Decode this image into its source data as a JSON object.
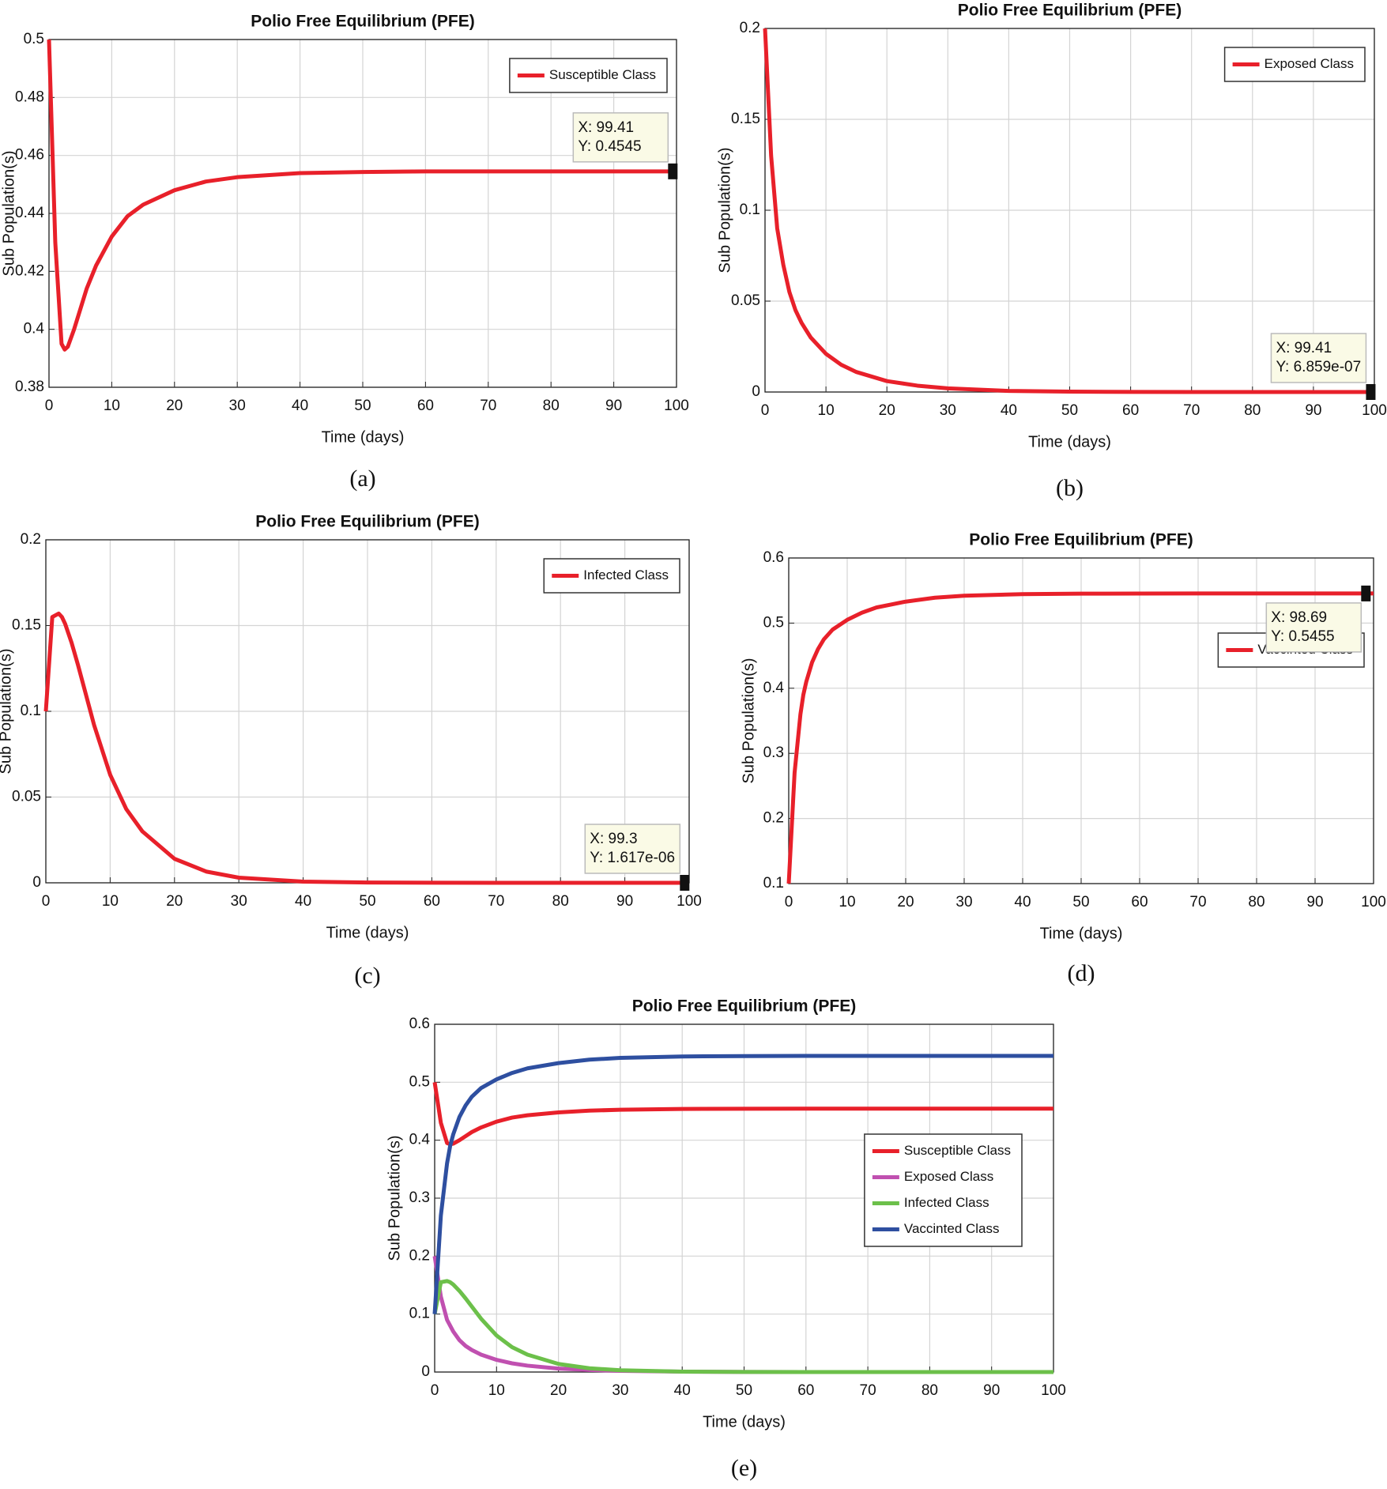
{
  "chart_data": [
    {
      "type": "line",
      "title": "Polio Free Equilibrium (PFE)",
      "caption": "(a)",
      "xlabel": "Time (days)",
      "ylabel": "Sub Population(s)",
      "x": [
        0,
        1,
        2,
        2.5,
        3,
        4,
        5,
        6,
        7.5,
        10,
        12.5,
        15,
        20,
        25,
        30,
        40,
        50,
        60,
        70,
        80,
        90,
        100
      ],
      "series": [
        {
          "name": "Susceptible Class",
          "color": "#e8202a",
          "values": [
            0.5,
            0.43,
            0.395,
            0.393,
            0.394,
            0.4,
            0.407,
            0.414,
            0.422,
            0.432,
            0.439,
            0.443,
            0.448,
            0.451,
            0.4525,
            0.4539,
            0.4543,
            0.4545,
            0.4545,
            0.4545,
            0.4545,
            0.4545
          ]
        }
      ],
      "xlim": [
        0,
        100
      ],
      "ylim": [
        0.38,
        0.5
      ],
      "xticks": [
        0,
        10,
        20,
        30,
        40,
        50,
        60,
        70,
        80,
        90,
        100
      ],
      "yticks": [
        0.38,
        0.4,
        0.42,
        0.44,
        0.46,
        0.48,
        0.5
      ],
      "grid": true,
      "legend": "upper right",
      "annotations": [
        {
          "x": 99.41,
          "y": 0.4545,
          "lines": [
            "X: 99.41",
            "Y: 0.4545"
          ]
        }
      ]
    },
    {
      "type": "line",
      "title": "Polio Free Equilibrium (PFE)",
      "caption": "(b)",
      "xlabel": "Time (days)",
      "ylabel": "Sub Population(s)",
      "x": [
        0,
        1,
        2,
        2.5,
        3,
        4,
        5,
        6,
        7.5,
        10,
        12.5,
        15,
        20,
        25,
        30,
        40,
        50,
        60,
        70,
        80,
        90,
        100
      ],
      "series": [
        {
          "name": "Exposed Class",
          "color": "#e8202a",
          "values": [
            0.2,
            0.13,
            0.09,
            0.08,
            0.07,
            0.055,
            0.045,
            0.038,
            0.03,
            0.021,
            0.015,
            0.011,
            0.006,
            0.0035,
            0.002,
            0.0006,
            0.0002,
            6e-05,
            2e-05,
            6e-06,
            2e-06,
            7e-07
          ]
        }
      ],
      "xlim": [
        0,
        100
      ],
      "ylim": [
        0,
        0.2
      ],
      "xticks": [
        0,
        10,
        20,
        30,
        40,
        50,
        60,
        70,
        80,
        90,
        100
      ],
      "yticks": [
        0,
        0.05,
        0.1,
        0.15,
        0.2
      ],
      "grid": true,
      "legend": "upper right",
      "annotations": [
        {
          "x": 99.41,
          "y": 6.859e-07,
          "lines": [
            "X: 99.41",
            "Y: 6.859e-07"
          ]
        }
      ]
    },
    {
      "type": "line",
      "title": "Polio Free Equilibrium (PFE)",
      "caption": "(c)",
      "xlabel": "Time (days)",
      "ylabel": "Sub Population(s)",
      "x": [
        0,
        1,
        2,
        2.5,
        3,
        4,
        5,
        6,
        7.5,
        10,
        12.5,
        15,
        20,
        25,
        30,
        40,
        50,
        60,
        70,
        80,
        90,
        100
      ],
      "series": [
        {
          "name": "Infected Class",
          "color": "#e8202a",
          "values": [
            0.1,
            0.155,
            0.157,
            0.155,
            0.151,
            0.14,
            0.127,
            0.113,
            0.092,
            0.063,
            0.043,
            0.03,
            0.014,
            0.0065,
            0.003,
            0.0007,
            0.00015,
            4e-05,
            1e-05,
            3e-06,
            2e-06,
            1.6e-06
          ]
        }
      ],
      "xlim": [
        0,
        100
      ],
      "ylim": [
        0,
        0.2
      ],
      "xticks": [
        0,
        10,
        20,
        30,
        40,
        50,
        60,
        70,
        80,
        90,
        100
      ],
      "yticks": [
        0,
        0.05,
        0.1,
        0.15,
        0.2
      ],
      "grid": true,
      "legend": "upper right",
      "annotations": [
        {
          "x": 99.3,
          "y": 1.617e-06,
          "lines": [
            "X: 99.3",
            "Y: 1.617e-06"
          ]
        }
      ]
    },
    {
      "type": "line",
      "title": "Polio Free Equilibrium (PFE)",
      "caption": "(d)",
      "xlabel": "Time (days)",
      "ylabel": "Sub Population(s)",
      "x": [
        0,
        1,
        2,
        2.5,
        3,
        4,
        5,
        6,
        7.5,
        10,
        12.5,
        15,
        20,
        25,
        30,
        40,
        50,
        60,
        70,
        80,
        90,
        100
      ],
      "series": [
        {
          "name": "Vaccinted Class",
          "color": "#e8202a",
          "values": [
            0.1,
            0.27,
            0.36,
            0.39,
            0.41,
            0.44,
            0.46,
            0.475,
            0.49,
            0.505,
            0.516,
            0.524,
            0.533,
            0.539,
            0.542,
            0.5445,
            0.5452,
            0.5454,
            0.5455,
            0.5455,
            0.5455,
            0.5455
          ]
        }
      ],
      "xlim": [
        0,
        100
      ],
      "ylim": [
        0.1,
        0.6
      ],
      "xticks": [
        0,
        10,
        20,
        30,
        40,
        50,
        60,
        70,
        80,
        90,
        100
      ],
      "yticks": [
        0.1,
        0.2,
        0.3,
        0.4,
        0.5,
        0.6
      ],
      "grid": true,
      "legend": "upper right",
      "annotations": [
        {
          "x": 98.69,
          "y": 0.5455,
          "lines": [
            "X: 98.69",
            "Y: 0.5455"
          ]
        }
      ]
    },
    {
      "type": "line",
      "title": "Polio Free Equilibrium (PFE)",
      "caption": "(e)",
      "xlabel": "Time (days)",
      "ylabel": "Sub Population(s)",
      "x": [
        0,
        1,
        2,
        2.5,
        3,
        4,
        5,
        6,
        7.5,
        10,
        12.5,
        15,
        20,
        25,
        30,
        40,
        50,
        60,
        70,
        80,
        90,
        100
      ],
      "series": [
        {
          "name": "Susceptible Class",
          "color": "#e8202a",
          "values": [
            0.5,
            0.43,
            0.395,
            0.393,
            0.394,
            0.4,
            0.407,
            0.414,
            0.422,
            0.432,
            0.439,
            0.443,
            0.448,
            0.451,
            0.4525,
            0.4539,
            0.4543,
            0.4545,
            0.4545,
            0.4545,
            0.4545,
            0.4545
          ]
        },
        {
          "name": "Exposed Class",
          "color": "#c050b0",
          "values": [
            0.2,
            0.13,
            0.09,
            0.08,
            0.07,
            0.055,
            0.045,
            0.038,
            0.03,
            0.021,
            0.015,
            0.011,
            0.006,
            0.0035,
            0.002,
            0.0006,
            0.0002,
            6e-05,
            2e-05,
            6e-06,
            2e-06,
            7e-07
          ]
        },
        {
          "name": "Infected Class",
          "color": "#6cc04a",
          "values": [
            0.1,
            0.155,
            0.157,
            0.155,
            0.151,
            0.14,
            0.127,
            0.113,
            0.092,
            0.063,
            0.043,
            0.03,
            0.014,
            0.0065,
            0.003,
            0.0007,
            0.00015,
            4e-05,
            1e-05,
            3e-06,
            2e-06,
            1.6e-06
          ]
        },
        {
          "name": "Vaccinted Class",
          "color": "#2e4fa0",
          "values": [
            0.1,
            0.27,
            0.36,
            0.39,
            0.41,
            0.44,
            0.46,
            0.475,
            0.49,
            0.505,
            0.516,
            0.524,
            0.533,
            0.539,
            0.542,
            0.5445,
            0.5452,
            0.5454,
            0.5455,
            0.5455,
            0.5455,
            0.5455
          ]
        }
      ],
      "xlim": [
        0,
        100
      ],
      "ylim": [
        0,
        0.6
      ],
      "xticks": [
        0,
        10,
        20,
        30,
        40,
        50,
        60,
        70,
        80,
        90,
        100
      ],
      "yticks": [
        0,
        0.1,
        0.2,
        0.3,
        0.4,
        0.5,
        0.6
      ],
      "grid": true,
      "legend": "center right",
      "annotations": []
    }
  ]
}
